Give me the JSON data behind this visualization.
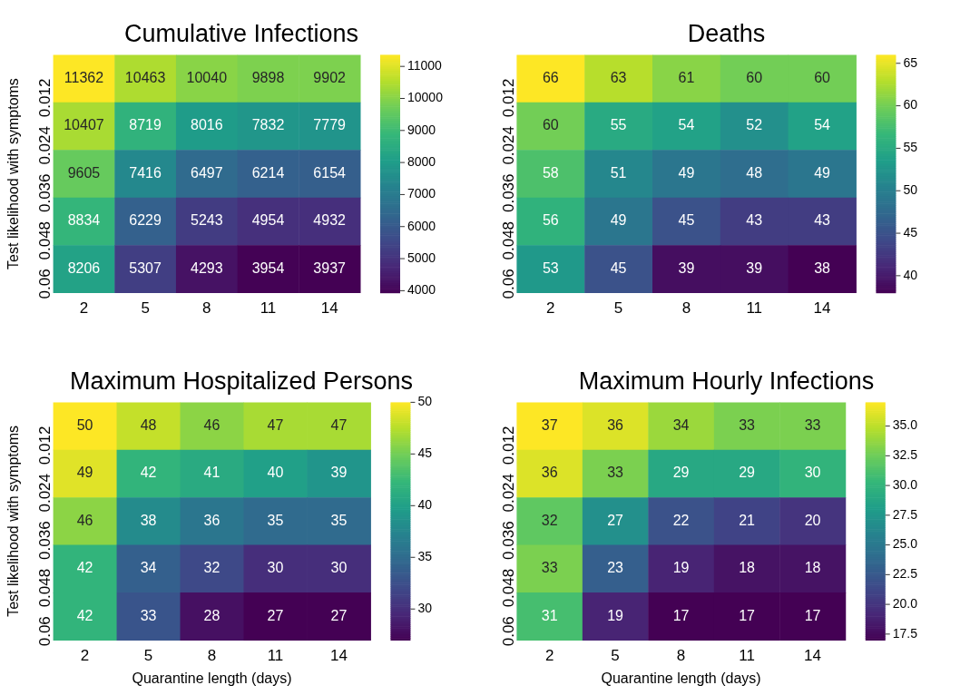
{
  "chart_data": [
    {
      "type": "heatmap",
      "title": "Cumulative Infections",
      "ylabel": "Test likelihood with symptoms",
      "categories": [
        "2",
        "5",
        "8",
        "11",
        "14"
      ],
      "y_categories": [
        "0.012",
        "0.024",
        "0.036",
        "0.048",
        "0.06"
      ],
      "cells": [
        [
          11362,
          10463,
          10040,
          9898,
          9902
        ],
        [
          10407,
          8719,
          8016,
          7832,
          7779
        ],
        [
          9605,
          7416,
          6497,
          6214,
          6154
        ],
        [
          8834,
          6229,
          5243,
          4954,
          4932
        ],
        [
          8206,
          5307,
          4293,
          3954,
          3937
        ]
      ],
      "clim": [
        3937,
        11362
      ],
      "cticks": [
        4000,
        5000,
        6000,
        7000,
        8000,
        9000,
        10000,
        11000
      ],
      "data_labels": true
    },
    {
      "type": "heatmap",
      "title": "Deaths",
      "categories": [
        "2",
        "5",
        "8",
        "11",
        "14"
      ],
      "y_categories": [
        "0.012",
        "0.024",
        "0.036",
        "0.048",
        "0.06"
      ],
      "cells": [
        [
          66,
          63,
          61,
          60,
          60
        ],
        [
          60,
          55,
          54,
          52,
          54
        ],
        [
          58,
          51,
          49,
          48,
          49
        ],
        [
          56,
          49,
          45,
          43,
          43
        ],
        [
          53,
          45,
          39,
          39,
          38
        ]
      ],
      "clim": [
        38,
        66
      ],
      "cticks": [
        40,
        45,
        50,
        55,
        60,
        65
      ],
      "data_labels": true
    },
    {
      "type": "heatmap",
      "title": "Maximum Hospitalized Persons",
      "xlabel": "Quarantine length (days)",
      "ylabel": "Test likelihood with symptoms",
      "categories": [
        "2",
        "5",
        "8",
        "11",
        "14"
      ],
      "y_categories": [
        "0.012",
        "0.024",
        "0.036",
        "0.048",
        "0.06"
      ],
      "cells": [
        [
          50,
          48,
          46,
          47,
          47
        ],
        [
          49,
          42,
          41,
          40,
          39
        ],
        [
          46,
          38,
          36,
          35,
          35
        ],
        [
          42,
          34,
          32,
          30,
          30
        ],
        [
          42,
          33,
          28,
          27,
          27
        ]
      ],
      "clim": [
        27,
        50
      ],
      "cticks": [
        30,
        35,
        40,
        45,
        50
      ],
      "data_labels": true
    },
    {
      "type": "heatmap",
      "title": "Maximum Hourly Infections",
      "xlabel": "Quarantine length (days)",
      "categories": [
        "2",
        "5",
        "8",
        "11",
        "14"
      ],
      "y_categories": [
        "0.012",
        "0.024",
        "0.036",
        "0.048",
        "0.06"
      ],
      "cells": [
        [
          37,
          36,
          34,
          33,
          33
        ],
        [
          36,
          33,
          29,
          29,
          30
        ],
        [
          32,
          27,
          22,
          21,
          20
        ],
        [
          33,
          23,
          19,
          18,
          18
        ],
        [
          31,
          19,
          17,
          17,
          17
        ]
      ],
      "clim": [
        17,
        37
      ],
      "cticks": [
        {
          "value": 17.5,
          "label": "17.5"
        },
        {
          "value": 20,
          "label": "20.0"
        },
        {
          "value": 22.5,
          "label": "22.5"
        },
        {
          "value": 25,
          "label": "25.0"
        },
        {
          "value": 27.5,
          "label": "27.5"
        },
        {
          "value": 30,
          "label": "30.0"
        },
        {
          "value": 32.5,
          "label": "32.5"
        },
        {
          "value": 35,
          "label": "35.0"
        }
      ],
      "data_labels": true
    }
  ]
}
